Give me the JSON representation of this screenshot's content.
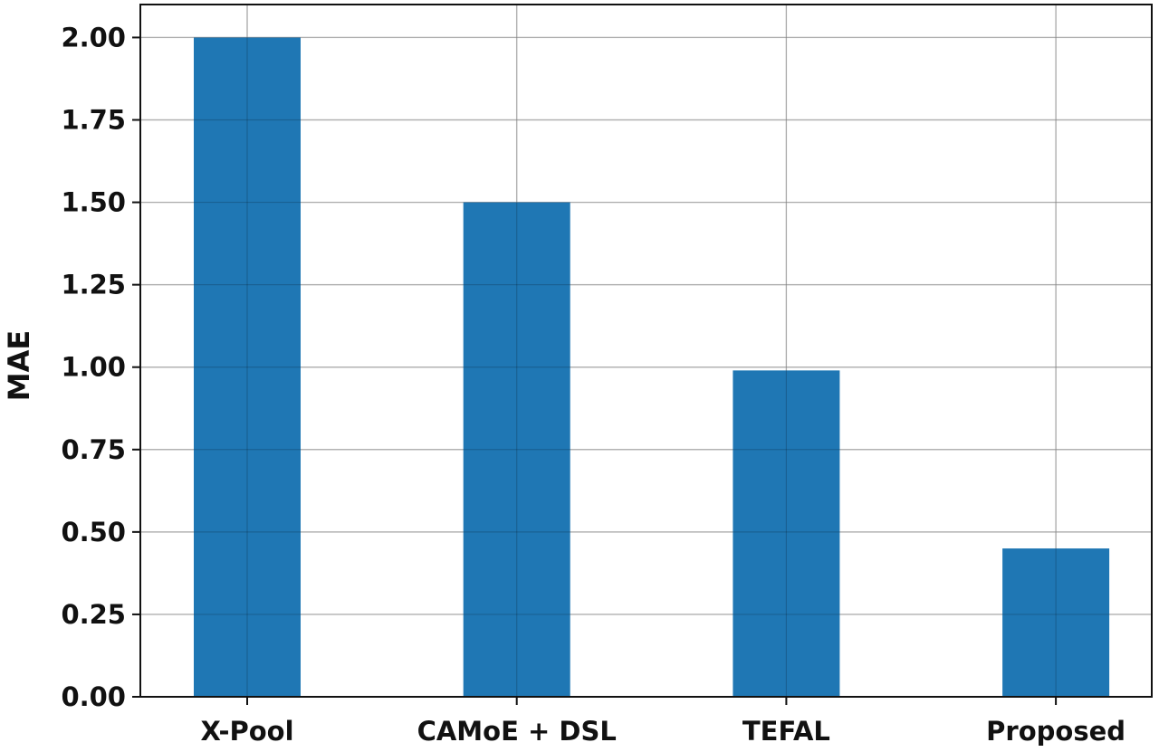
{
  "chart_data": {
    "type": "bar",
    "title": "",
    "xlabel": "",
    "ylabel": "MAE",
    "categories": [
      "X-Pool",
      "CAMoE + DSL",
      "TEFAL",
      "Proposed"
    ],
    "values": [
      2.0,
      1.5,
      0.99,
      0.45
    ],
    "ylim": [
      0,
      2.1
    ],
    "yticks": [
      "0.00",
      "0.25",
      "0.50",
      "0.75",
      "1.00",
      "1.25",
      "1.50",
      "1.75",
      "2.00"
    ],
    "grid": true,
    "bar_color": "#1f77b4",
    "grid_color": "#d3d3d3"
  }
}
